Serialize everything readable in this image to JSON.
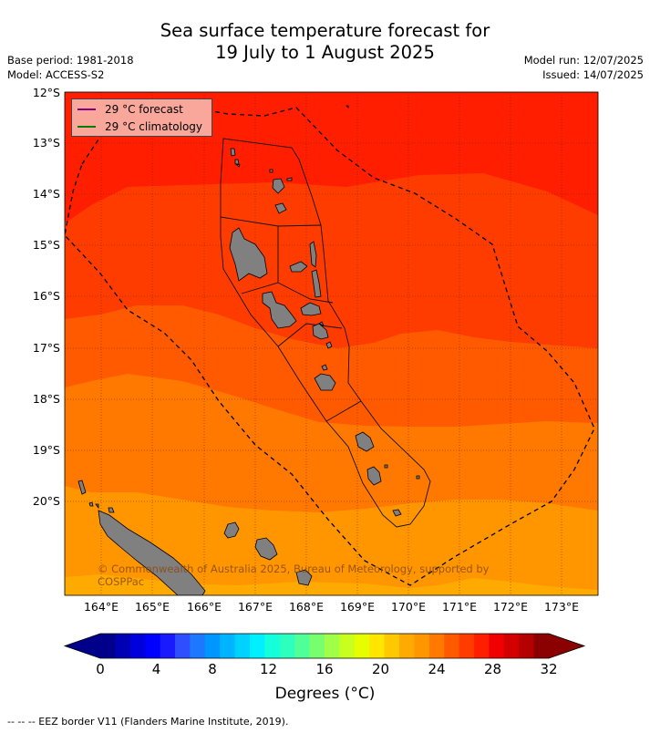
{
  "title_line1": "Sea surface temperature forecast for",
  "title_line2": "19 July to 1 August 2025",
  "meta_left": [
    "Base period: 1981-2018",
    "Model: ACCESS-S2"
  ],
  "meta_right": [
    "Model run: 12/07/2025",
    "Issued: 14/07/2025"
  ],
  "latitudes": [
    "12°S",
    "13°S",
    "14°S",
    "15°S",
    "16°S",
    "17°S",
    "18°S",
    "19°S",
    "20°S"
  ],
  "longitudes": [
    "164°E",
    "165°E",
    "166°E",
    "167°E",
    "168°E",
    "169°E",
    "170°E",
    "171°E",
    "172°E",
    "173°E"
  ],
  "legend": {
    "forecast_label": "29 °C  forecast",
    "climatology_label": "29 °C  climatology",
    "forecast_color": "#800080",
    "climatology_color": "#008000"
  },
  "copyright": "© Commonwealth of Australia 2025, Bureau of Meteorology, supported by COSPPac",
  "colorbar": {
    "ticks": [
      "0",
      "4",
      "8",
      "12",
      "16",
      "20",
      "24",
      "28",
      "32"
    ],
    "label": "Degrees (°C)",
    "colors": [
      "#00008b",
      "#0000b4",
      "#0000dc",
      "#0000ff",
      "#1a1aff",
      "#2f4fff",
      "#1e78ff",
      "#0096ff",
      "#00b4ff",
      "#00d2ff",
      "#00f0ff",
      "#14ffdc",
      "#2dffbe",
      "#50ff96",
      "#78ff6e",
      "#a0ff46",
      "#c8ff1e",
      "#e6ff00",
      "#ffe600",
      "#ffc800",
      "#ffaa00",
      "#ff9600",
      "#ff7800",
      "#ff5a00",
      "#ff3c00",
      "#ff1e00",
      "#f00000",
      "#d20000",
      "#b40000",
      "#8b0000"
    ],
    "under_color": "#00008b",
    "over_color": "#8b0000"
  },
  "footer": "--  --  -- EEZ border V11 (Flanders Marine Institute, 2019)."
}
